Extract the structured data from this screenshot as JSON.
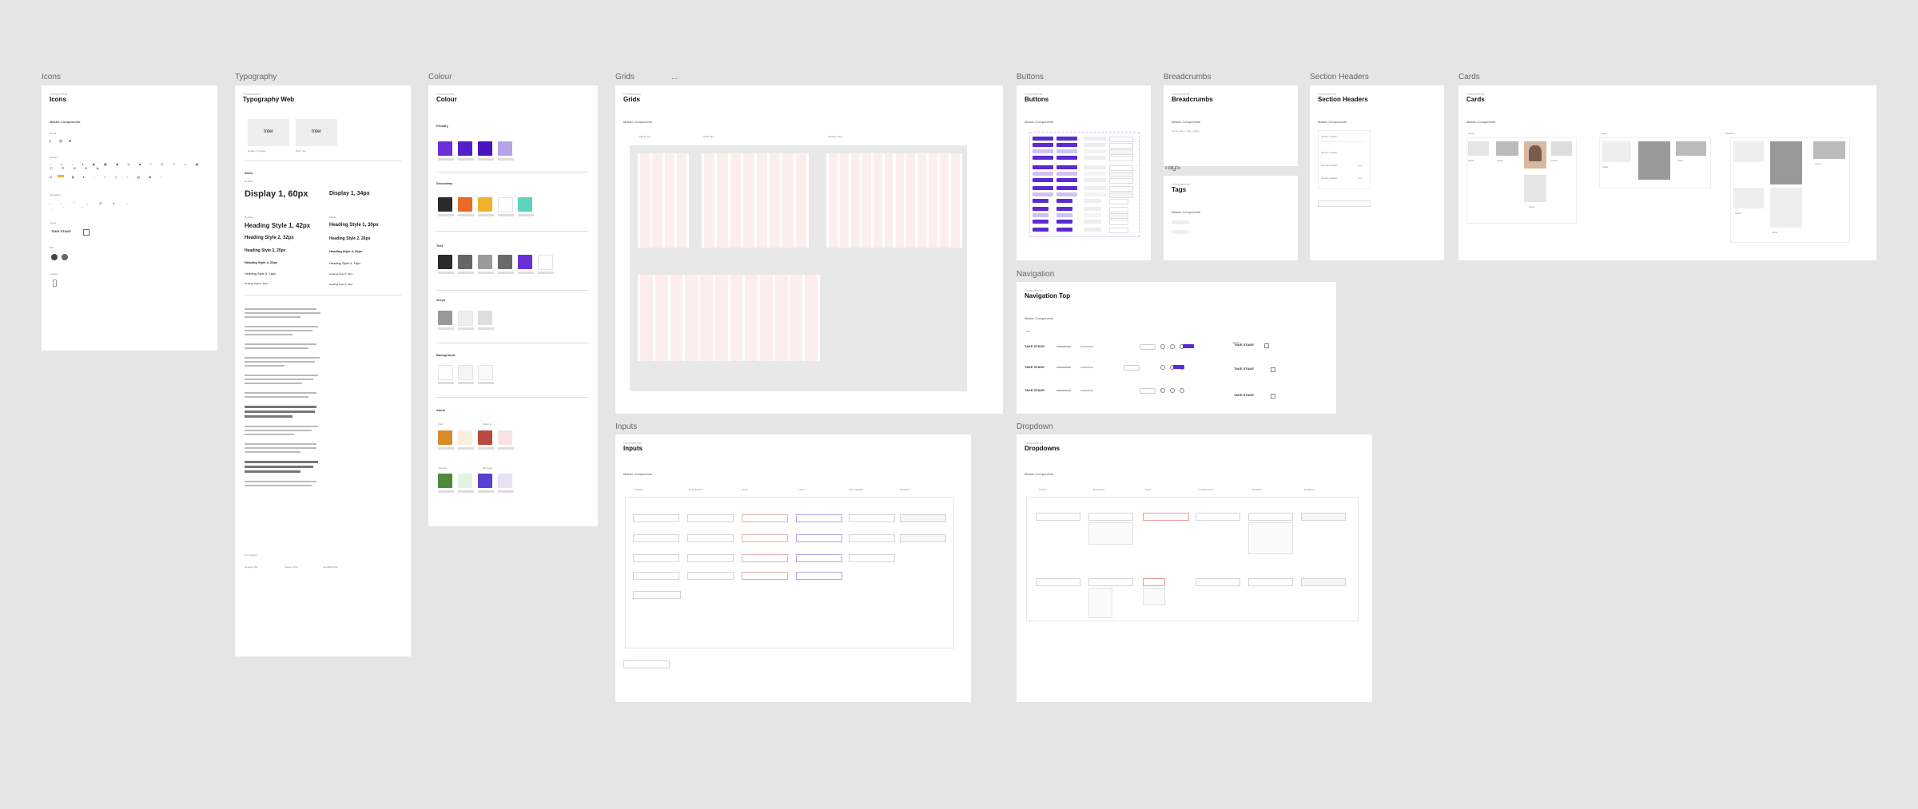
{
  "frames": {
    "icons": {
      "label": "Icons",
      "title": "Icons"
    },
    "typography": {
      "label": "Typography",
      "title": "Typography Web"
    },
    "colour": {
      "label": "Colour",
      "title": "Colour"
    },
    "grids": {
      "label": "Grids",
      "title": "Grids",
      "extra": "..."
    },
    "buttons": {
      "label": "Buttons",
      "title": "Buttons"
    },
    "breadcrumbs": {
      "label": "Breadcrumbs",
      "title": "Breadcrumbs"
    },
    "section_headers": {
      "label": "Section Headers",
      "title": "Section Headers"
    },
    "cards": {
      "label": "Cards",
      "title": "Cards"
    },
    "tags": {
      "label": "Tags",
      "title": "Tags"
    },
    "navigation": {
      "label": "Navigation",
      "title": "Navigation Top"
    },
    "inputs": {
      "label": "Inputs",
      "title": "Inputs"
    },
    "dropdown": {
      "label": "Dropdown",
      "title": "Dropdowns"
    }
  },
  "common": {
    "master_components": "Master Components"
  },
  "typography": {
    "display1": "Display 1, 60px",
    "display1_mobile": "Display 1, 34px",
    "heading1": "Heading Style 1, 42px",
    "heading1_mobile": "Heading Style 1, 30px",
    "heading2": "Heading Style 2, 32px",
    "heading2_mobile": "Heading Style 2, 26px",
    "heading3": "Heading Style 3, 25px",
    "heading3_mobile": "Heading Style 3, 20px",
    "heading4": "Heading Style 4, 20px",
    "heading4_mobile": "Heading Style 4, 18px",
    "heading5": "Heading Style 5, 18px",
    "heading5_mobile": "Heading Style 5, 16px",
    "heading6": "Heading Style 6, 16px",
    "heading6_mobile": "Heading Style 6, 14px",
    "font_a": "Inter",
    "font_b": "Inter"
  },
  "colour": {
    "sections": [
      "Primary",
      "Secondary",
      "Text",
      "Greys",
      "Background",
      "Alerts"
    ],
    "primary": [
      "#6a2fd6",
      "#5420c7",
      "#4b12c0",
      "#b9a3e8"
    ],
    "secondary": [
      "#2b2b2b",
      "#ea6a25",
      "#f0b22e",
      "#ffffff",
      "#5bd3bd"
    ],
    "text": [
      "#2b2b2b",
      "#666666",
      "#9a9a9a",
      "#6a6a6a",
      "#6a2fd6",
      "#ffffff"
    ],
    "greys": [
      "#999999",
      "#eeeeee",
      "#dddddd"
    ],
    "background": [
      "#ffffff",
      "#f5f5f5",
      "#fafafa"
    ],
    "alerts": [
      "#d98a2a",
      "#fbeedd",
      "#b84a3e",
      "#f7e4e2",
      "#4d8b3a",
      "#e3f3e0",
      "#5a3fd0",
      "#e8e0f7"
    ]
  },
  "navigation": {
    "brand": "TAKE STAKE"
  }
}
